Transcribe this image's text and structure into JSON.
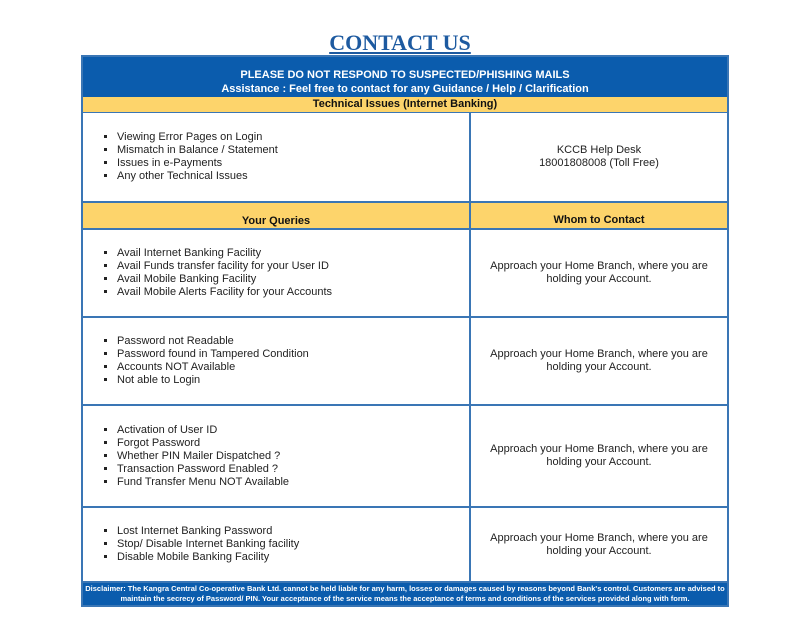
{
  "title": "CONTACT US",
  "banner": {
    "line1": "PLEASE DO NOT RESPOND TO SUSPECTED/PHISHING MAILS",
    "line2": "Assistance : Feel free to contact for any Guidance / Help / Clarification"
  },
  "technical": {
    "heading": "Technical Issues (Internet Banking)",
    "items": [
      "Viewing Error Pages on Login",
      "Mismatch in Balance / Statement",
      "Issues in e-Payments",
      "Any other Technical Issues"
    ],
    "contact_line1": "KCCB Help Desk",
    "contact_line2": "18001808008 (Toll Free)"
  },
  "headers": {
    "queries": "Your Queries",
    "contact": "Whom to Contact"
  },
  "rows": [
    {
      "items": [
        "Avail Internet Banking Facility",
        "Avail Funds transfer facility for your User ID",
        "Avail Mobile Banking Facility",
        "Avail Mobile Alerts Facility for your Accounts"
      ],
      "contact": "Approach your Home Branch, where you are holding your Account."
    },
    {
      "items": [
        "Password not Readable",
        "Password found in Tampered Condition",
        "Accounts NOT Available",
        "Not able to Login"
      ],
      "contact": "Approach your Home Branch, where you are holding your Account."
    },
    {
      "items": [
        "Activation of User ID",
        "Forgot Password",
        "Whether PIN Mailer Dispatched ?",
        "Transaction Password Enabled ?",
        "Fund Transfer Menu NOT Available"
      ],
      "contact": "Approach your Home Branch, where you are holding your Account."
    },
    {
      "items": [
        "Lost Internet Banking Password",
        "Stop/ Disable Internet Banking facility",
        "Disable Mobile Banking Facility"
      ],
      "contact": "Approach your Home Branch, where you are holding your Account."
    }
  ],
  "disclaimer": "Disclaimer: The Kangra Central Co-operative Bank Ltd. cannot be held liable for any harm, losses or damages caused by reasons beyond Bank's control. Customers are advised to maintain the secrecy of Password/ PIN. Your acceptance of the service means the acceptance of terms and conditions of the services provided along with form.",
  "colors": {
    "blue": "#0b5cad",
    "yellow": "#fdd46b",
    "title": "#1d5aa0"
  }
}
